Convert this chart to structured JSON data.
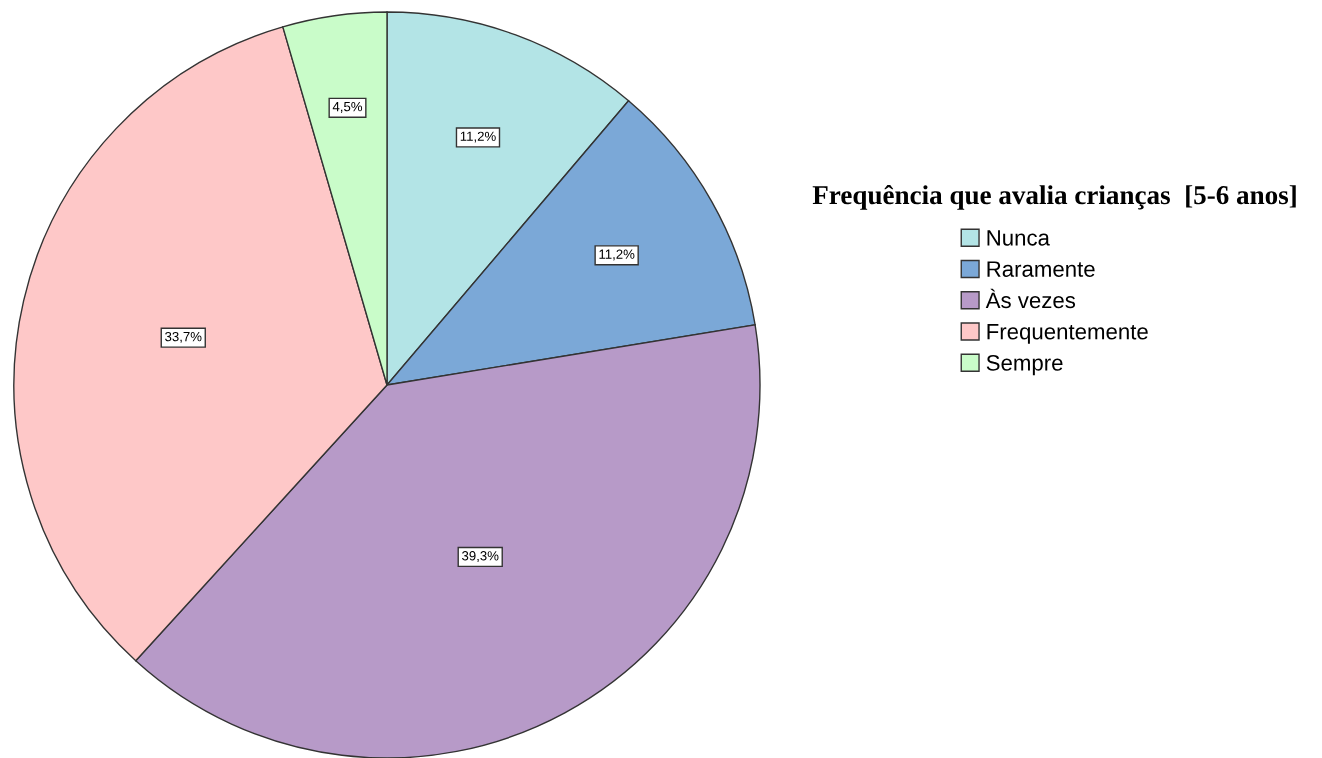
{
  "chart_data": {
    "type": "pie",
    "categories": [
      "Nunca",
      "Raramente",
      "Às vezes",
      "Frequentemente",
      "Sempre"
    ],
    "values": [
      11.2,
      11.2,
      39.3,
      33.7,
      4.5
    ],
    "colors": [
      "#b3e4e6",
      "#7ba8d7",
      "#b79ac8",
      "#fec8c8",
      "#c9fcc9"
    ],
    "value_labels": [
      "11,2%",
      "11,2%",
      "39,3%",
      "33,7%",
      "4,5%"
    ],
    "legend": "right",
    "legend_title": "Frequência que avalia crianças  [5-6 anos]"
  }
}
